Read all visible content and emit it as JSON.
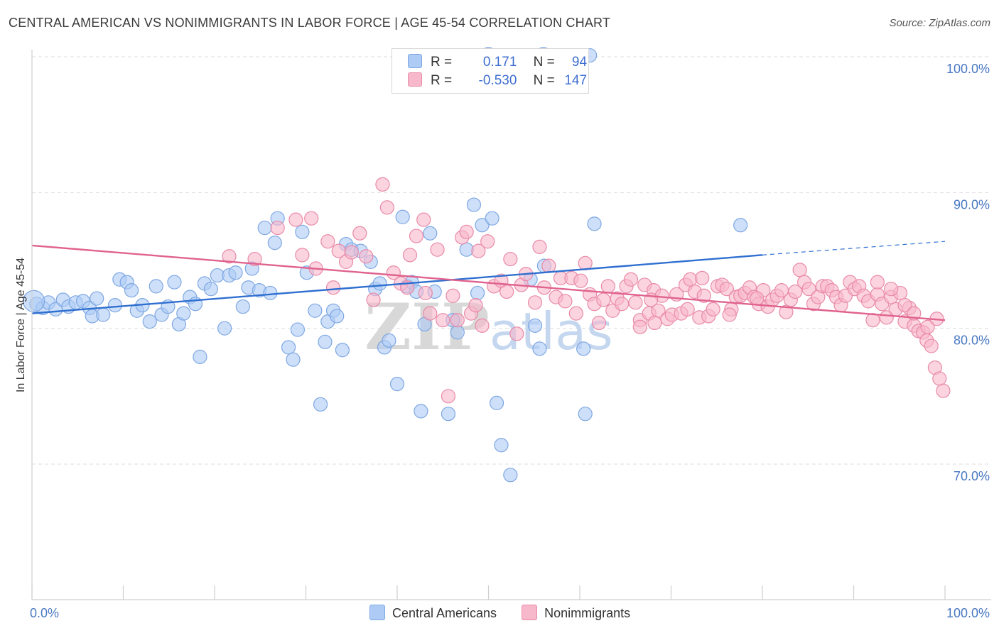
{
  "title": "CENTRAL AMERICAN VS NONIMMIGRANTS IN LABOR FORCE | AGE 45-54 CORRELATION CHART",
  "source": "Source: ZipAtlas.com",
  "watermark": "ZIPatlas",
  "legend": {
    "rows": [
      {
        "r_label": "R =",
        "r_value": "0.171",
        "n_label": "N =",
        "n_value": "94",
        "fill": "#aecbf5",
        "stroke": "#7ea7e3"
      },
      {
        "r_label": "R =",
        "r_value": "-0.530",
        "n_label": "N =",
        "n_value": "147",
        "fill": "#f8b8cb",
        "stroke": "#e98aa8"
      }
    ]
  },
  "bottom_legend": [
    {
      "label": "Central Americans",
      "fill": "#aecbf5",
      "stroke": "#7ea7e3"
    },
    {
      "label": "Nonimmigrants",
      "fill": "#f8b8cb",
      "stroke": "#e98aa8"
    }
  ],
  "chart_data": {
    "type": "scatter",
    "ylabel": "In Labor Force | Age 45-54",
    "xlabel": "",
    "xlim": [
      0,
      100
    ],
    "ylim": [
      61,
      101
    ],
    "x_tick_labels": [
      {
        "value": 0,
        "label": "0.0%"
      },
      {
        "value": 100,
        "label": "100.0%"
      }
    ],
    "y_tick_labels": [
      {
        "value": 100,
        "label": "100.0%"
      },
      {
        "value": 90,
        "label": "90.0%"
      },
      {
        "value": 80,
        "label": "80.0%"
      },
      {
        "value": 70,
        "label": "70.0%"
      }
    ],
    "series": [
      {
        "name": "Central Americans",
        "color": "#7ea7e3",
        "fill": "#aecbf5",
        "trend": {
          "x0": 0,
          "y0": 81.1,
          "x1": 80,
          "y1": 85.4,
          "dash_to_x": 100,
          "dash_to_y": 86.4,
          "color": "#2f6fd0"
        },
        "points": [
          [
            0.5,
            81.8
          ],
          [
            1.2,
            81.5
          ],
          [
            1.8,
            81.9
          ],
          [
            2.6,
            81.4
          ],
          [
            3.4,
            82.1
          ],
          [
            4.0,
            81.6
          ],
          [
            4.8,
            81.9
          ],
          [
            5.6,
            82.0
          ],
          [
            6.3,
            81.5
          ],
          [
            7.1,
            82.2
          ],
          [
            6.6,
            80.9
          ],
          [
            7.8,
            81.0
          ],
          [
            9.1,
            81.7
          ],
          [
            9.6,
            83.6
          ],
          [
            10.4,
            83.4
          ],
          [
            10.9,
            82.8
          ],
          [
            11.5,
            81.3
          ],
          [
            12.1,
            81.7
          ],
          [
            12.9,
            80.5
          ],
          [
            13.6,
            83.1
          ],
          [
            14.2,
            81.0
          ],
          [
            14.9,
            81.6
          ],
          [
            15.6,
            83.4
          ],
          [
            16.1,
            80.3
          ],
          [
            16.6,
            81.1
          ],
          [
            17.3,
            82.3
          ],
          [
            17.9,
            81.8
          ],
          [
            18.4,
            77.9
          ],
          [
            18.9,
            83.3
          ],
          [
            19.6,
            82.9
          ],
          [
            20.3,
            83.9
          ],
          [
            21.1,
            80.0
          ],
          [
            21.6,
            83.9
          ],
          [
            22.3,
            84.1
          ],
          [
            23.1,
            81.6
          ],
          [
            23.7,
            83.0
          ],
          [
            24.1,
            84.4
          ],
          [
            24.9,
            82.8
          ],
          [
            25.5,
            87.4
          ],
          [
            26.1,
            82.6
          ],
          [
            26.6,
            86.3
          ],
          [
            26.9,
            88.1
          ],
          [
            28.1,
            78.6
          ],
          [
            28.6,
            77.7
          ],
          [
            29.1,
            79.9
          ],
          [
            29.6,
            87.1
          ],
          [
            30.1,
            84.1
          ],
          [
            31.0,
            81.3
          ],
          [
            31.6,
            74.4
          ],
          [
            32.1,
            79.0
          ],
          [
            32.4,
            80.5
          ],
          [
            33.0,
            81.3
          ],
          [
            33.4,
            80.9
          ],
          [
            34.0,
            78.4
          ],
          [
            34.4,
            86.2
          ],
          [
            35.0,
            85.8
          ],
          [
            36.0,
            85.7
          ],
          [
            37.1,
            84.9
          ],
          [
            37.6,
            82.9
          ],
          [
            38.1,
            83.3
          ],
          [
            38.6,
            78.6
          ],
          [
            39.1,
            79.1
          ],
          [
            40.0,
            75.9
          ],
          [
            40.6,
            88.2
          ],
          [
            41.1,
            83.1
          ],
          [
            41.6,
            83.4
          ],
          [
            42.1,
            82.7
          ],
          [
            42.6,
            73.9
          ],
          [
            43.0,
            80.3
          ],
          [
            43.6,
            87.0
          ],
          [
            44.1,
            82.7
          ],
          [
            45.6,
            73.7
          ],
          [
            46.1,
            80.6
          ],
          [
            46.6,
            79.7
          ],
          [
            47.6,
            85.8
          ],
          [
            48.4,
            89.1
          ],
          [
            48.8,
            82.6
          ],
          [
            49.3,
            87.6
          ],
          [
            50.4,
            88.1
          ],
          [
            50.9,
            74.5
          ],
          [
            51.4,
            71.4
          ],
          [
            52.4,
            69.2
          ],
          [
            54.6,
            83.6
          ],
          [
            55.1,
            80.2
          ],
          [
            55.6,
            78.5
          ],
          [
            56.1,
            84.6
          ],
          [
            50.0,
            100.2
          ],
          [
            56.0,
            100.2
          ],
          [
            61.1,
            100.1
          ],
          [
            60.4,
            78.5
          ],
          [
            60.6,
            73.7
          ],
          [
            61.6,
            87.7
          ],
          [
            77.6,
            87.6
          ],
          [
            0.2,
            82.0
          ]
        ]
      },
      {
        "name": "Nonimmigrants",
        "color": "#e98aa8",
        "fill": "#f8b8cb",
        "trend": {
          "x0": 0,
          "y0": 86.1,
          "x1": 100,
          "y1": 80.6,
          "color": "#e0628e"
        },
        "points": [
          [
            21.6,
            85.3
          ],
          [
            24.4,
            85.1
          ],
          [
            26.9,
            87.4
          ],
          [
            28.9,
            88.0
          ],
          [
            29.6,
            85.4
          ],
          [
            30.6,
            88.1
          ],
          [
            31.1,
            84.4
          ],
          [
            32.4,
            86.4
          ],
          [
            33.0,
            83.0
          ],
          [
            33.6,
            85.7
          ],
          [
            34.4,
            84.9
          ],
          [
            35.0,
            85.6
          ],
          [
            35.9,
            87.0
          ],
          [
            36.6,
            85.3
          ],
          [
            37.4,
            82.1
          ],
          [
            38.4,
            90.6
          ],
          [
            38.9,
            88.9
          ],
          [
            39.6,
            84.1
          ],
          [
            40.4,
            83.3
          ],
          [
            41.1,
            83.0
          ],
          [
            41.4,
            85.4
          ],
          [
            42.1,
            86.8
          ],
          [
            42.9,
            88.0
          ],
          [
            43.1,
            82.6
          ],
          [
            43.6,
            81.1
          ],
          [
            44.4,
            85.8
          ],
          [
            45.0,
            80.6
          ],
          [
            45.6,
            75.0
          ],
          [
            46.1,
            82.4
          ],
          [
            46.6,
            80.6
          ],
          [
            47.1,
            86.7
          ],
          [
            47.6,
            87.1
          ],
          [
            48.1,
            81.1
          ],
          [
            48.6,
            81.7
          ],
          [
            48.9,
            85.7
          ],
          [
            49.3,
            80.2
          ],
          [
            49.9,
            86.4
          ],
          [
            50.6,
            83.1
          ],
          [
            51.4,
            83.5
          ],
          [
            52.0,
            82.7
          ],
          [
            52.4,
            85.1
          ],
          [
            53.1,
            79.6
          ],
          [
            53.6,
            83.2
          ],
          [
            54.1,
            84.0
          ],
          [
            55.1,
            81.9
          ],
          [
            55.6,
            86.0
          ],
          [
            56.1,
            83.0
          ],
          [
            56.6,
            84.6
          ],
          [
            57.4,
            82.3
          ],
          [
            57.9,
            83.7
          ],
          [
            58.4,
            82.0
          ],
          [
            59.1,
            83.7
          ],
          [
            59.6,
            81.1
          ],
          [
            60.1,
            83.5
          ],
          [
            60.6,
            84.8
          ],
          [
            61.1,
            82.5
          ],
          [
            61.6,
            81.8
          ],
          [
            62.1,
            80.4
          ],
          [
            62.6,
            82.1
          ],
          [
            63.1,
            83.1
          ],
          [
            63.6,
            81.3
          ],
          [
            64.1,
            82.2
          ],
          [
            64.6,
            81.8
          ],
          [
            65.1,
            83.1
          ],
          [
            65.6,
            83.6
          ],
          [
            66.1,
            81.9
          ],
          [
            66.6,
            80.6
          ],
          [
            67.1,
            83.2
          ],
          [
            67.6,
            81.1
          ],
          [
            68.1,
            82.8
          ],
          [
            68.6,
            81.3
          ],
          [
            69.0,
            82.4
          ],
          [
            69.6,
            80.7
          ],
          [
            70.1,
            81.0
          ],
          [
            70.6,
            82.5
          ],
          [
            71.1,
            81.1
          ],
          [
            71.6,
            83.2
          ],
          [
            72.1,
            83.6
          ],
          [
            72.6,
            82.7
          ],
          [
            73.1,
            80.8
          ],
          [
            73.6,
            82.4
          ],
          [
            74.1,
            80.9
          ],
          [
            74.6,
            81.4
          ],
          [
            75.1,
            83.1
          ],
          [
            75.6,
            83.2
          ],
          [
            76.1,
            82.9
          ],
          [
            76.6,
            81.4
          ],
          [
            77.1,
            82.3
          ],
          [
            77.6,
            82.4
          ],
          [
            78.1,
            82.6
          ],
          [
            78.6,
            83.0
          ],
          [
            79.1,
            82.3
          ],
          [
            79.6,
            81.8
          ],
          [
            80.1,
            82.8
          ],
          [
            80.6,
            81.6
          ],
          [
            81.1,
            82.1
          ],
          [
            81.6,
            82.4
          ],
          [
            82.1,
            82.8
          ],
          [
            82.6,
            81.2
          ],
          [
            83.1,
            82.1
          ],
          [
            83.6,
            82.7
          ],
          [
            84.1,
            84.3
          ],
          [
            84.6,
            83.4
          ],
          [
            85.1,
            82.9
          ],
          [
            85.6,
            81.8
          ],
          [
            86.1,
            82.3
          ],
          [
            86.6,
            83.1
          ],
          [
            87.1,
            83.1
          ],
          [
            87.6,
            82.8
          ],
          [
            88.1,
            82.3
          ],
          [
            88.6,
            81.7
          ],
          [
            89.1,
            82.4
          ],
          [
            89.6,
            83.4
          ],
          [
            90.1,
            82.9
          ],
          [
            90.6,
            83.1
          ],
          [
            91.1,
            82.4
          ],
          [
            91.6,
            82.0
          ],
          [
            92.1,
            80.6
          ],
          [
            92.6,
            82.5
          ],
          [
            93.1,
            81.8
          ],
          [
            93.6,
            80.8
          ],
          [
            94.1,
            82.3
          ],
          [
            94.6,
            81.4
          ],
          [
            95.1,
            82.6
          ],
          [
            95.6,
            80.5
          ],
          [
            96.1,
            81.5
          ],
          [
            96.6,
            80.2
          ],
          [
            97.1,
            79.8
          ],
          [
            97.6,
            79.7
          ],
          [
            98.0,
            79.1
          ],
          [
            98.5,
            78.7
          ],
          [
            98.9,
            77.1
          ],
          [
            99.4,
            76.3
          ],
          [
            99.8,
            75.4
          ],
          [
            92.6,
            83.4
          ],
          [
            94.1,
            82.9
          ],
          [
            95.6,
            81.7
          ],
          [
            96.6,
            81.1
          ],
          [
            98.1,
            80.1
          ],
          [
            99.1,
            80.7
          ],
          [
            66.6,
            80.1
          ],
          [
            67.8,
            82.1
          ],
          [
            68.2,
            80.4
          ],
          [
            71.8,
            81.4
          ],
          [
            73.4,
            83.7
          ],
          [
            76.4,
            81.0
          ],
          [
            79.4,
            82.2
          ]
        ]
      }
    ],
    "grid": true
  }
}
